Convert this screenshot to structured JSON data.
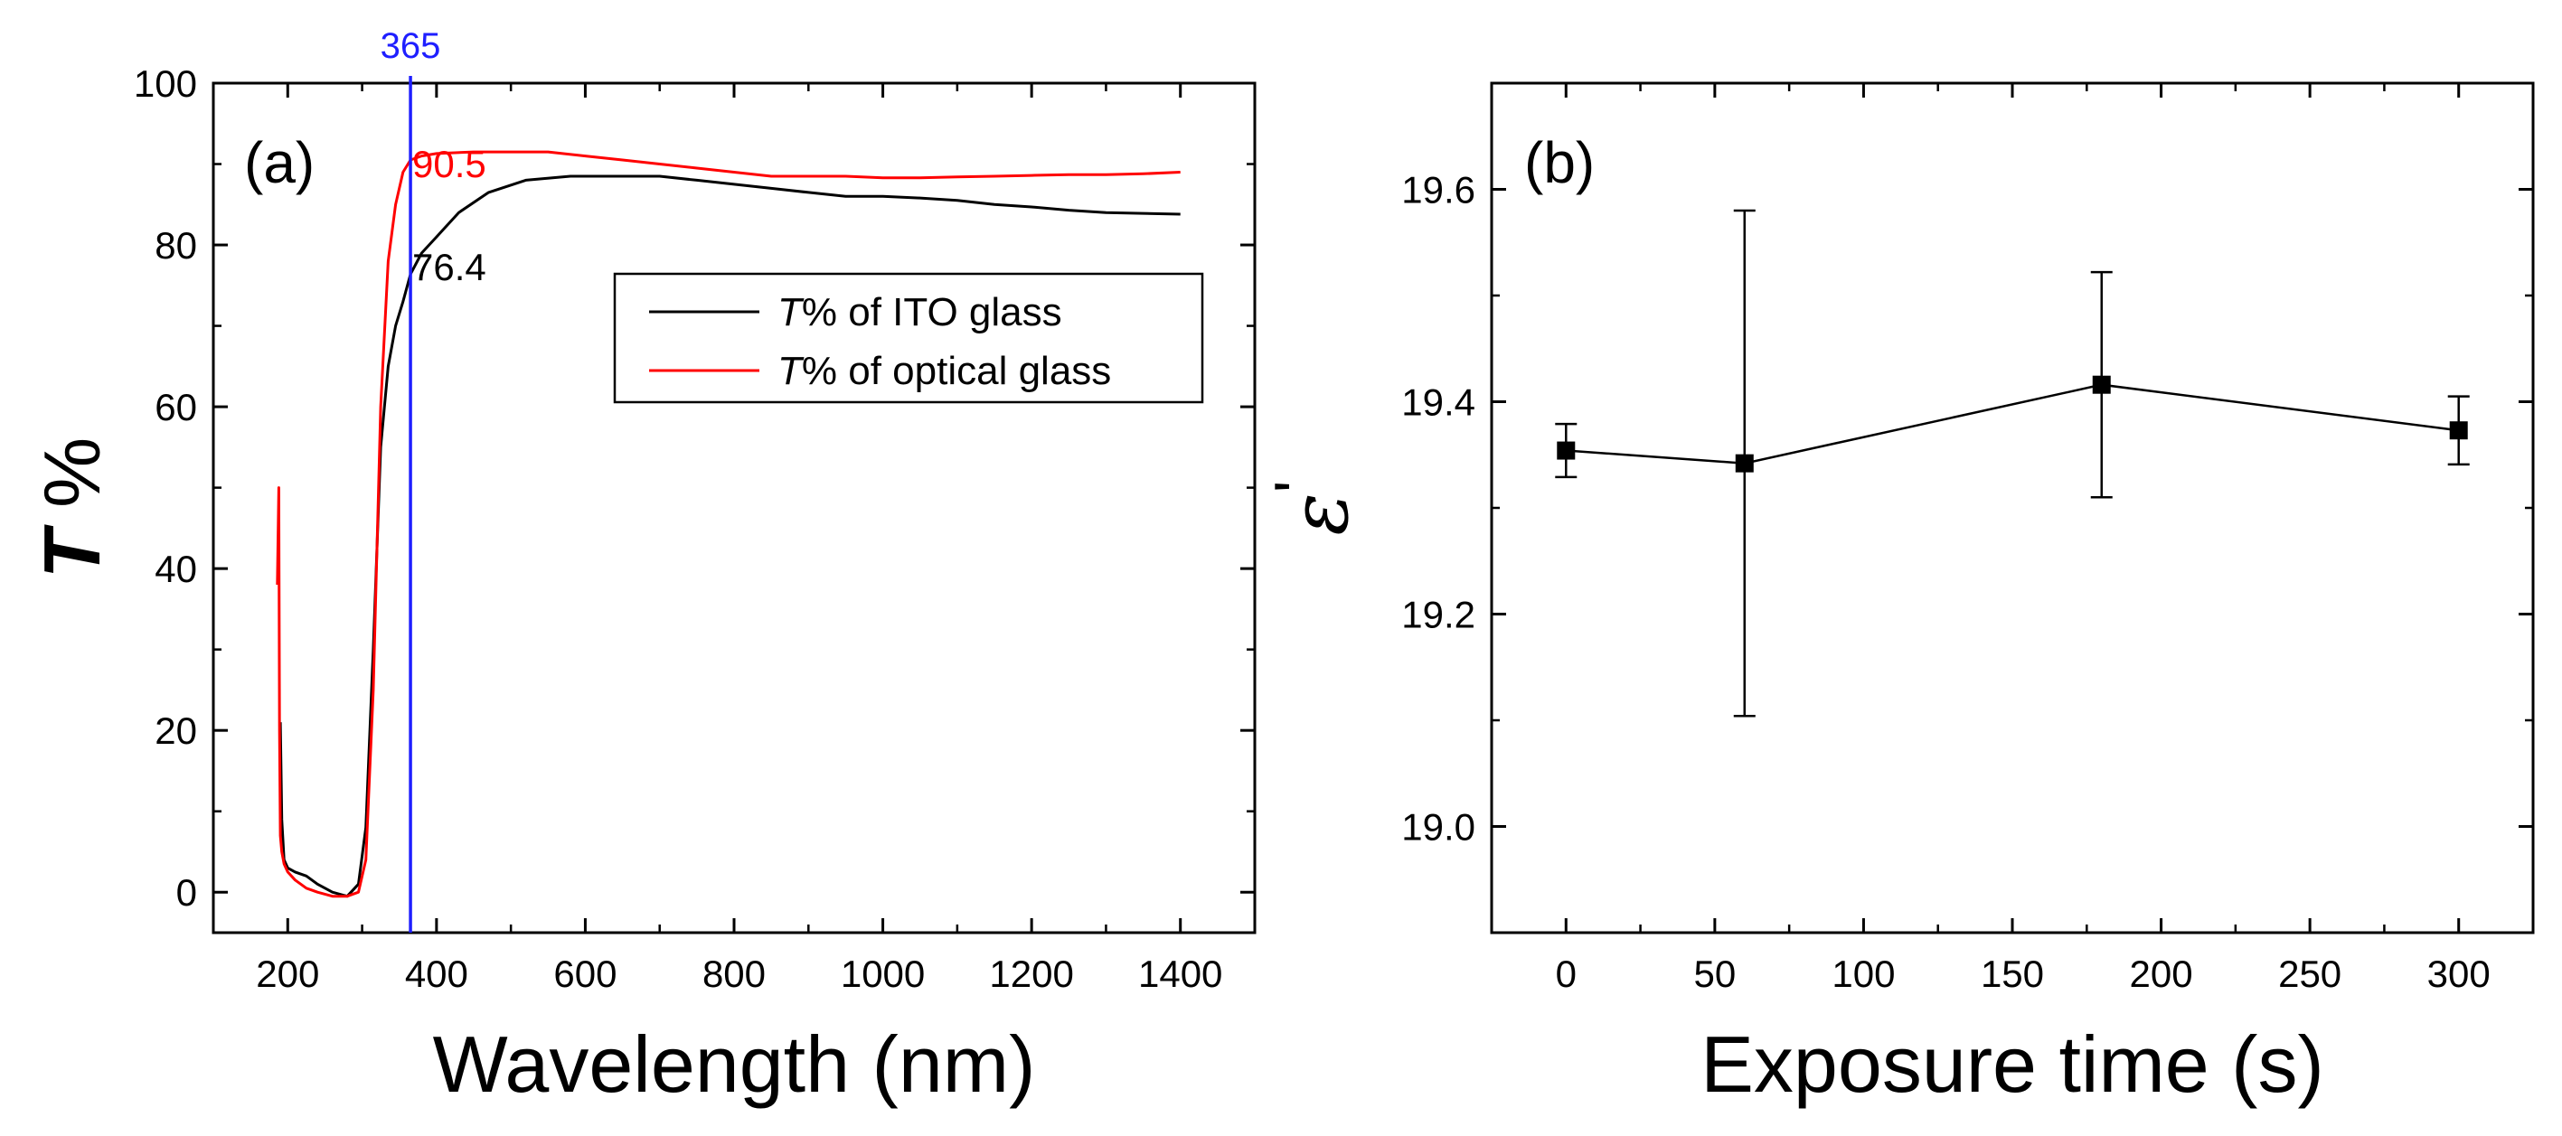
{
  "chart_data": [
    {
      "type": "line",
      "panel_label": "(a)",
      "xlabel": "Wavelength (nm)",
      "ylabel": "T %",
      "ylabel_italic": "T",
      "ylabel_rest": " %",
      "xlim": [
        100,
        1500
      ],
      "ylim": [
        -5,
        100
      ],
      "xticks": [
        200,
        400,
        600,
        800,
        1000,
        1200,
        1400
      ],
      "yticks": [
        0,
        20,
        40,
        60,
        80,
        100
      ],
      "vline": {
        "x": 365,
        "label": "365",
        "color": "#1f1fff"
      },
      "annotations": [
        {
          "text": "90.5",
          "x": 365,
          "y": 90.5,
          "color": "#ff0000"
        },
        {
          "text": "76.4",
          "x": 365,
          "y": 76.4,
          "color": "#000000"
        }
      ],
      "legend_position": "upper-right",
      "series": [
        {
          "name": "T% of ITO glass",
          "legend_italic": "T",
          "legend_rest": "% of ITO glass",
          "color": "#000000",
          "x": [
            190,
            192,
            195,
            200,
            210,
            225,
            240,
            260,
            280,
            295,
            305,
            315,
            325,
            335,
            345,
            355,
            365,
            380,
            400,
            430,
            470,
            520,
            580,
            650,
            700,
            750,
            800,
            850,
            900,
            950,
            1000,
            1050,
            1100,
            1150,
            1200,
            1250,
            1300,
            1350,
            1400
          ],
          "y": [
            21,
            9,
            4,
            3,
            2.5,
            2,
            1,
            0,
            -0.5,
            1,
            8,
            30,
            55,
            65,
            70,
            73,
            76.4,
            79,
            81,
            84,
            86.5,
            88,
            88.5,
            88.5,
            88.5,
            88,
            87.5,
            87,
            86.5,
            86,
            86,
            85.8,
            85.5,
            85,
            84.7,
            84.3,
            84,
            83.9,
            83.8
          ]
        },
        {
          "name": "T% of optical glass",
          "legend_italic": "T",
          "legend_rest": "% of optical glass",
          "color": "#ff0000",
          "x": [
            186,
            188,
            189,
            190,
            192,
            195,
            200,
            210,
            225,
            240,
            260,
            280,
            295,
            305,
            315,
            325,
            335,
            345,
            355,
            365,
            380,
            400,
            450,
            500,
            550,
            600,
            650,
            700,
            750,
            800,
            850,
            900,
            950,
            1000,
            1050,
            1100,
            1150,
            1200,
            1250,
            1300,
            1350,
            1400
          ],
          "y": [
            38,
            50,
            20,
            7,
            5,
            3.5,
            2.5,
            1.5,
            0.5,
            0,
            -0.5,
            -0.5,
            0,
            4,
            25,
            60,
            78,
            85,
            89,
            90.5,
            91,
            91.3,
            91.5,
            91.5,
            91.5,
            91,
            90.5,
            90,
            89.5,
            89,
            88.5,
            88.5,
            88.5,
            88.3,
            88.3,
            88.4,
            88.5,
            88.6,
            88.7,
            88.7,
            88.8,
            89
          ]
        }
      ]
    },
    {
      "type": "scatter",
      "panel_label": "(b)",
      "xlabel": "Exposure time (s)",
      "ylabel": "ε'",
      "ylabel_symbol": "ε",
      "ylabel_prime": "'",
      "xlim": [
        -25,
        325
      ],
      "ylim": [
        18.9,
        19.7
      ],
      "xticks": [
        0,
        50,
        100,
        150,
        200,
        250,
        300
      ],
      "yticks": [
        19.0,
        19.2,
        19.4,
        19.6
      ],
      "ytick_labels": [
        "19.0",
        "19.2",
        "19.4",
        "19.6"
      ],
      "series": [
        {
          "name": "epsilon prime",
          "color": "#000000",
          "x": [
            0,
            60,
            180,
            300
          ],
          "y": [
            19.354,
            19.342,
            19.416,
            19.373
          ],
          "yerr": [
            0.025,
            0.238,
            0.106,
            0.032
          ]
        }
      ]
    }
  ]
}
